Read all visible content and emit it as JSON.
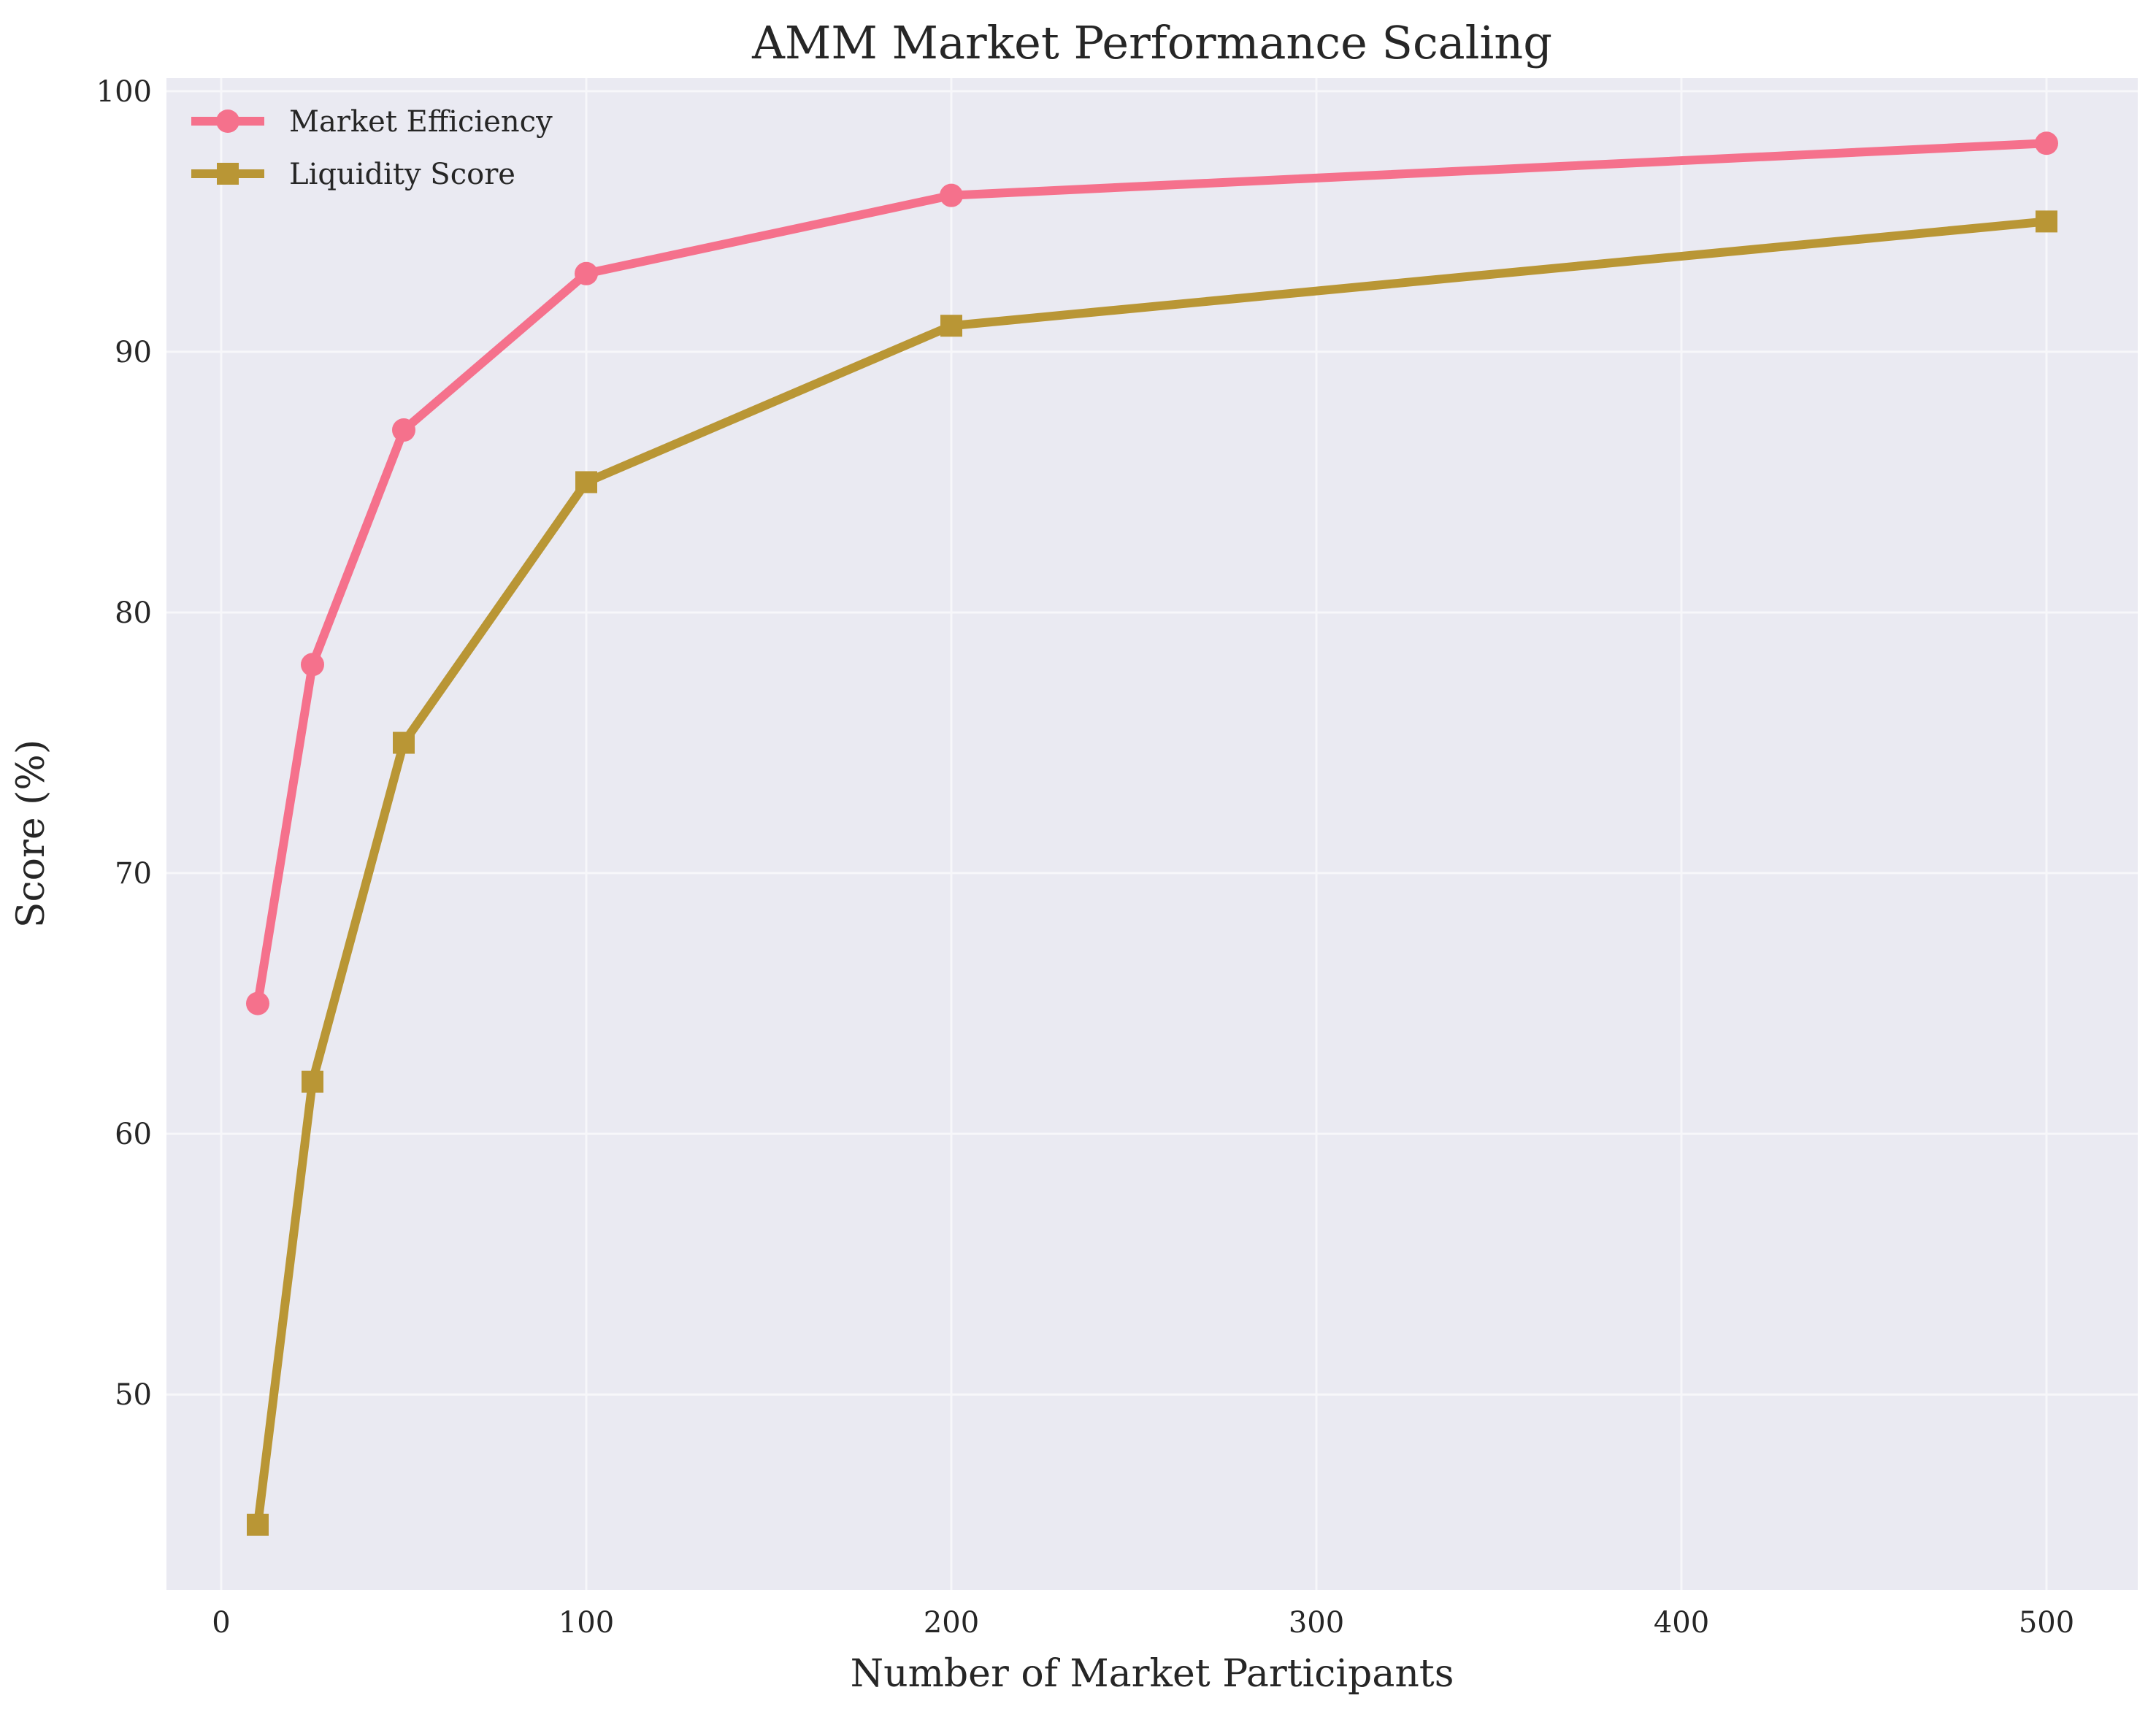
{
  "chart_data": {
    "type": "line",
    "title": "AMM Market Performance Scaling",
    "xlabel": "Number of Market Participants",
    "ylabel": "Score (%)",
    "x": [
      10,
      25,
      50,
      100,
      200,
      500
    ],
    "xlim": [
      -15,
      525
    ],
    "ylim": [
      42.5,
      100.5
    ],
    "xticks": [
      0,
      100,
      200,
      300,
      400,
      500
    ],
    "yticks": [
      50,
      60,
      70,
      80,
      90,
      100
    ],
    "grid": true,
    "legend_position": "upper-left",
    "series": [
      {
        "name": "Market Efficiency",
        "values": [
          65,
          78,
          87,
          93,
          96,
          98
        ],
        "color": "#f5718c",
        "marker": "circle"
      },
      {
        "name": "Liquidity Score",
        "values": [
          45,
          62,
          75,
          85,
          91,
          95
        ],
        "color": "#b99635",
        "marker": "square"
      }
    ]
  },
  "style": {
    "plot_background": "#eaeaf2",
    "grid_color": "#f7f7fa"
  }
}
